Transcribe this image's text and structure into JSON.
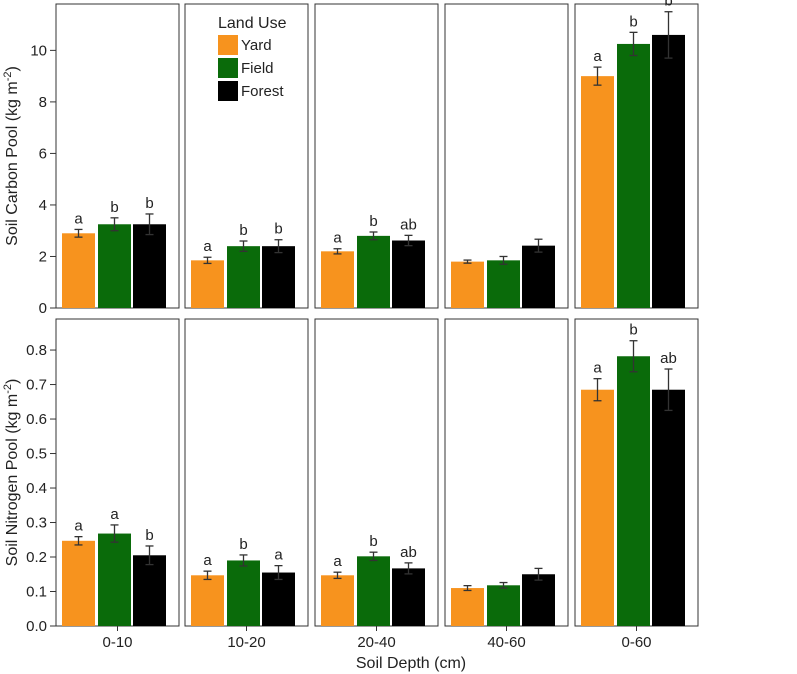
{
  "chart_data": {
    "type": "bar",
    "layout": "faceted grid: 2 rows x 5 columns",
    "xlabel": "Soil Depth (cm)",
    "facets": [
      "0-10",
      "10-20",
      "20-40",
      "40-60",
      "0-60"
    ],
    "legend": {
      "title": "Land Use",
      "placement": "inside second panel of top row, upper-left",
      "entries": [
        {
          "name": "Yard",
          "color": "#f7931e"
        },
        {
          "name": "Field",
          "color": "#0a6b0a"
        },
        {
          "name": "Forest",
          "color": "#000000"
        }
      ]
    },
    "rows": [
      {
        "ylabel_main": "Soil Carbon Pool (kg m",
        "ylabel_sup": "-2",
        "ylabel_tail": ")",
        "ylim": [
          0,
          11.8
        ],
        "yticks": [
          0,
          2,
          4,
          6,
          8,
          10
        ],
        "ytick_labels": [
          "0",
          "2",
          "4",
          "6",
          "8",
          "10"
        ],
        "panels": [
          {
            "values": [
              2.9,
              3.25,
              3.25
            ],
            "errors": [
              0.15,
              0.25,
              0.4
            ],
            "letters": [
              "a",
              "b",
              "b"
            ]
          },
          {
            "values": [
              1.85,
              2.4,
              2.4
            ],
            "errors": [
              0.12,
              0.2,
              0.25
            ],
            "letters": [
              "a",
              "b",
              "b"
            ]
          },
          {
            "values": [
              2.2,
              2.8,
              2.62
            ],
            "errors": [
              0.1,
              0.15,
              0.2
            ],
            "letters": [
              "a",
              "b",
              "ab"
            ]
          },
          {
            "values": [
              1.8,
              1.85,
              2.42
            ],
            "errors": [
              0.06,
              0.15,
              0.25
            ],
            "letters": [
              "",
              "",
              ""
            ]
          },
          {
            "values": [
              9.0,
              10.25,
              10.6
            ],
            "errors": [
              0.35,
              0.45,
              0.9
            ],
            "letters": [
              "a",
              "b",
              "b"
            ]
          }
        ]
      },
      {
        "ylabel_main": "Soil Nitrogen Pool (kg m",
        "ylabel_sup": "-2",
        "ylabel_tail": ")",
        "ylim": [
          0,
          0.89
        ],
        "yticks": [
          0,
          0.1,
          0.2,
          0.3,
          0.4,
          0.5,
          0.6,
          0.7,
          0.8
        ],
        "ytick_labels": [
          "0.0",
          "0.1",
          "0.2",
          "0.3",
          "0.4",
          "0.5",
          "0.6",
          "0.7",
          "0.8"
        ],
        "panels": [
          {
            "values": [
              0.247,
              0.268,
              0.205
            ],
            "errors": [
              0.012,
              0.025,
              0.027
            ],
            "letters": [
              "a",
              "a",
              "b"
            ]
          },
          {
            "values": [
              0.147,
              0.19,
              0.155
            ],
            "errors": [
              0.012,
              0.016,
              0.02
            ],
            "letters": [
              "a",
              "b",
              "a"
            ]
          },
          {
            "values": [
              0.147,
              0.202,
              0.167
            ],
            "errors": [
              0.009,
              0.012,
              0.016
            ],
            "letters": [
              "a",
              "b",
              "ab"
            ]
          },
          {
            "values": [
              0.11,
              0.118,
              0.15
            ],
            "errors": [
              0.007,
              0.008,
              0.017
            ],
            "letters": [
              "",
              "",
              ""
            ]
          },
          {
            "values": [
              0.685,
              0.782,
              0.685
            ],
            "errors": [
              0.032,
              0.045,
              0.06
            ],
            "letters": [
              "a",
              "b",
              "ab"
            ]
          }
        ]
      }
    ]
  }
}
